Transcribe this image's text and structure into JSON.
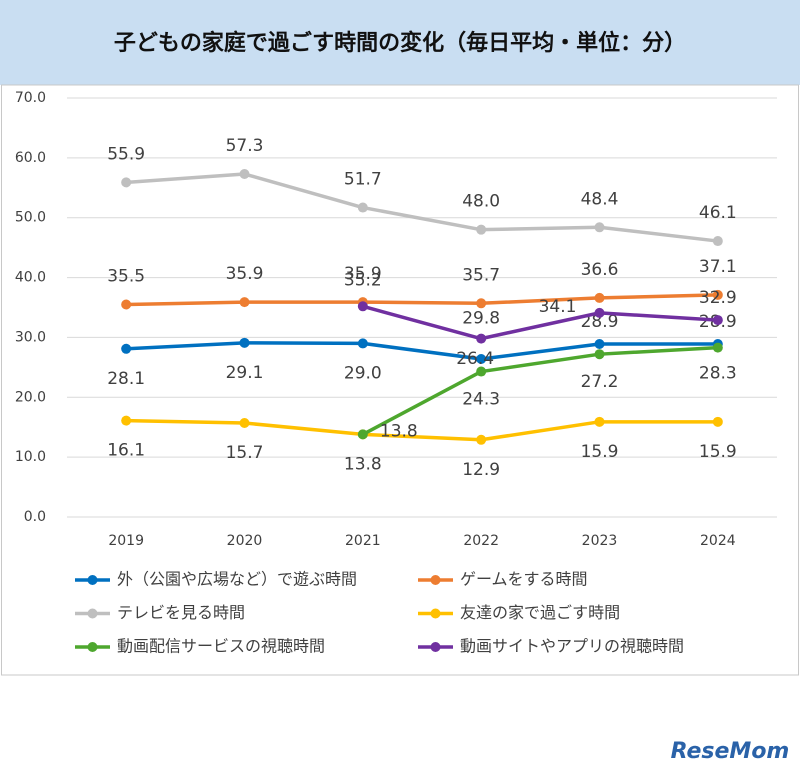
{
  "chart_data": {
    "type": "line",
    "title": "子どもの家庭で過ごす時間の変化（毎日平均・単位：分）",
    "categories": [
      "2019",
      "2020",
      "2021",
      "2022",
      "2023",
      "2024"
    ],
    "ylim": [
      0,
      70
    ],
    "yticks": [
      {
        "value": 0,
        "label": "0.0"
      },
      {
        "value": 10,
        "label": "10.0"
      },
      {
        "value": 20,
        "label": "20.0"
      },
      {
        "value": 30,
        "label": "30.0"
      },
      {
        "value": 40,
        "label": "40.0"
      },
      {
        "value": 50,
        "label": "50.0"
      },
      {
        "value": 60,
        "label": "60.0"
      },
      {
        "value": 70,
        "label": "70.0"
      }
    ],
    "grid": true,
    "legend": "bottom",
    "series": [
      {
        "name": "外（公園や広場など）で遊ぶ時間",
        "color": "#0070c0",
        "values": [
          28.1,
          29.1,
          29.0,
          26.4,
          28.9,
          28.9
        ],
        "value_labels": [
          "28.1",
          "29.1",
          "29.0",
          "26.4",
          "28.9",
          "28.9"
        ]
      },
      {
        "name": "ゲームをする時間",
        "color": "#ed7d31",
        "values": [
          35.5,
          35.9,
          35.9,
          35.7,
          36.6,
          37.1
        ],
        "value_labels": [
          "35.5",
          "35.9",
          "35.9",
          "35.7",
          "36.6",
          "37.1"
        ]
      },
      {
        "name": "テレビを見る時間",
        "color": "#bfbfbf",
        "values": [
          55.9,
          57.3,
          51.7,
          48.0,
          48.4,
          46.1
        ],
        "value_labels": [
          "55.9",
          "57.3",
          "51.7",
          "48.0",
          "48.4",
          "46.1"
        ]
      },
      {
        "name": "友達の家で過ごす時間",
        "color": "#ffc000",
        "values": [
          16.1,
          15.7,
          13.8,
          12.9,
          15.9,
          15.9
        ],
        "value_labels": [
          "16.1",
          "15.7",
          "13.8",
          "12.9",
          "15.9",
          "15.9"
        ]
      },
      {
        "name": "動画配信サービスの視聴時間",
        "color": "#4ea72e",
        "values": [
          null,
          null,
          13.8,
          24.3,
          27.2,
          28.3
        ],
        "value_labels": [
          null,
          null,
          "13.8",
          "24.3",
          "27.2",
          "28.3"
        ]
      },
      {
        "name": "動画サイトやアプリの視聴時間",
        "color": "#7030a0",
        "values": [
          null,
          null,
          35.2,
          29.8,
          34.1,
          32.9
        ],
        "value_labels": [
          null,
          null,
          "35.2",
          "29.8",
          "34.1",
          "32.9"
        ]
      }
    ]
  },
  "watermark": "ReseMom"
}
